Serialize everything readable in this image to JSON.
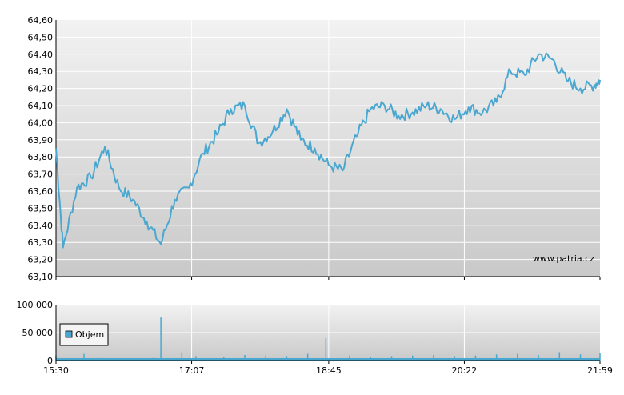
{
  "watermark": "www.patria.cz",
  "chart_data": [
    {
      "type": "line",
      "title": "",
      "xlabel": "",
      "ylabel": "",
      "ylim": [
        63.1,
        64.6
      ],
      "y_ticks": [
        "64,60",
        "64,50",
        "64,40",
        "64,30",
        "64,20",
        "64,10",
        "64,00",
        "63,90",
        "63,80",
        "63,70",
        "63,60",
        "63,50",
        "63,40",
        "63,30",
        "63,20",
        "63,10"
      ],
      "grid": true,
      "series": [
        {
          "color": "#4aa8d0",
          "x": [
            "15:30",
            "15:35",
            "15:45",
            "15:55",
            "16:05",
            "16:15",
            "16:25",
            "16:35",
            "16:45",
            "16:55",
            "17:05",
            "17:15",
            "17:25",
            "17:35",
            "17:45",
            "17:55",
            "18:05",
            "18:15",
            "18:25",
            "18:35",
            "18:45",
            "18:55",
            "19:05",
            "19:15",
            "19:25",
            "19:35",
            "19:45",
            "19:55",
            "20:05",
            "20:15",
            "20:25",
            "20:35",
            "20:45",
            "20:55",
            "21:05",
            "21:15",
            "21:25",
            "21:35",
            "21:45",
            "21:55",
            "21:59"
          ],
          "values": [
            63.85,
            63.27,
            63.62,
            63.68,
            63.86,
            63.62,
            63.55,
            63.42,
            63.29,
            63.55,
            63.62,
            63.82,
            63.93,
            64.08,
            64.1,
            63.88,
            63.95,
            64.08,
            63.9,
            63.85,
            63.75,
            63.72,
            63.92,
            64.08,
            64.1,
            64.04,
            64.06,
            64.1,
            64.08,
            64.02,
            64.09,
            64.06,
            64.12,
            64.3,
            64.28,
            64.4,
            64.37,
            64.25,
            64.2,
            64.22,
            64.25
          ]
        }
      ]
    },
    {
      "type": "bar",
      "title": "",
      "xlabel": "",
      "ylabel": "",
      "ylim": [
        0,
        100000
      ],
      "y_ticks": [
        "100 000",
        "50 000",
        "0"
      ],
      "x_ticks": [
        "15:30",
        "17:07",
        "18:45",
        "20:22",
        "21:59"
      ],
      "grid": true,
      "legend": "top-left",
      "series": [
        {
          "name": "Objem",
          "color": "#4aa8d0",
          "x": [
            "15:30",
            "15:50",
            "16:00",
            "16:10",
            "16:20",
            "16:40",
            "16:45",
            "17:00",
            "17:10",
            "17:30",
            "17:45",
            "18:00",
            "18:15",
            "18:30",
            "18:43",
            "19:00",
            "19:15",
            "19:30",
            "19:45",
            "20:00",
            "20:15",
            "20:30",
            "20:45",
            "21:00",
            "21:15",
            "21:30",
            "21:45",
            "21:59"
          ],
          "values": [
            9000,
            12000,
            5000,
            4000,
            3000,
            6000,
            77000,
            15000,
            8000,
            7000,
            10000,
            9000,
            8000,
            12000,
            40000,
            9000,
            7000,
            8000,
            9000,
            10000,
            8000,
            9000,
            11000,
            12000,
            10000,
            15000,
            11000,
            13000
          ]
        }
      ]
    }
  ]
}
